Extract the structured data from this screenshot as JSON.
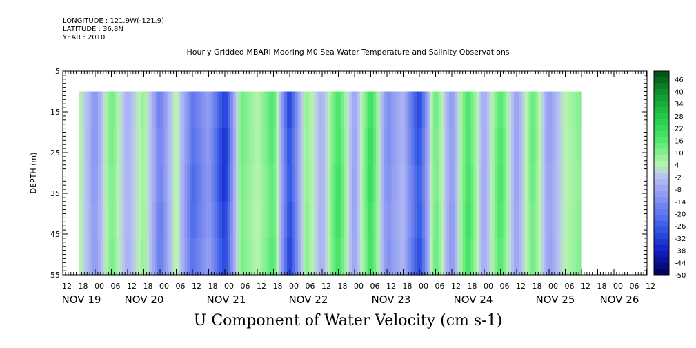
{
  "header": {
    "longitude": "LONGITUDE : 121.9W(-121.9)",
    "latitude": "LATITUDE : 36.8N",
    "year": "YEAR : 2010"
  },
  "chart_data": {
    "type": "heatmap",
    "title": "Hourly Gridded MBARI Mooring M0 Sea Water Temperature and Salinity Observations",
    "xlabel": "U Component of Water Velocity (cm s-1)",
    "ylabel": "DEPTH (m)",
    "ylim": [
      55,
      5
    ],
    "y_ticks": [
      5,
      15,
      25,
      35,
      45,
      55
    ],
    "x_hour_ticks": [
      "12",
      "18",
      "00",
      "06",
      "12",
      "18",
      "00",
      "06",
      "12",
      "18",
      "00",
      "06",
      "12",
      "18",
      "00",
      "06",
      "12",
      "18",
      "00",
      "06",
      "12",
      "18",
      "00",
      "06",
      "12",
      "18",
      "00",
      "06",
      "12",
      "18",
      "00",
      "06",
      "12",
      "18",
      "00",
      "06",
      "12"
    ],
    "x_day_labels": [
      "NOV 19",
      "NOV 20",
      "NOV 21",
      "NOV 22",
      "NOV 23",
      "NOV 24",
      "NOV 25",
      "NOV 26"
    ],
    "colorbar": {
      "labels": [
        46,
        40,
        34,
        28,
        22,
        16,
        10,
        4,
        -2,
        -8,
        -14,
        -20,
        -26,
        -32,
        -38,
        -44,
        -50
      ],
      "range": [
        -50,
        50
      ]
    },
    "data_depth_range_m": [
      10,
      55
    ],
    "data_time_range": [
      "2010-11-18 18:00",
      "2010-11-26 12:00"
    ],
    "time_profile": [
      {
        "t": "2010-11-18 18:00",
        "u": 6
      },
      {
        "t": "2010-11-19 00:00",
        "u": -12
      },
      {
        "t": "2010-11-19 06:00",
        "u": 12
      },
      {
        "t": "2010-11-19 12:00",
        "u": -6
      },
      {
        "t": "2010-11-19 18:00",
        "u": 8
      },
      {
        "t": "2010-11-20 00:00",
        "u": -18
      },
      {
        "t": "2010-11-20 06:00",
        "u": 6
      },
      {
        "t": "2010-11-20 12:00",
        "u": -22
      },
      {
        "t": "2010-11-20 18:00",
        "u": -10
      },
      {
        "t": "2010-11-21 00:00",
        "u": -34
      },
      {
        "t": "2010-11-21 06:00",
        "u": 12
      },
      {
        "t": "2010-11-21 12:00",
        "u": 4
      },
      {
        "t": "2010-11-21 18:00",
        "u": 16
      },
      {
        "t": "2010-11-22 00:00",
        "u": -32
      },
      {
        "t": "2010-11-22 06:00",
        "u": 10
      },
      {
        "t": "2010-11-22 12:00",
        "u": -6
      },
      {
        "t": "2010-11-22 18:00",
        "u": 20
      },
      {
        "t": "2010-11-23 00:00",
        "u": -10
      },
      {
        "t": "2010-11-23 06:00",
        "u": 22
      },
      {
        "t": "2010-11-23 12:00",
        "u": -14
      },
      {
        "t": "2010-11-23 18:00",
        "u": -4
      },
      {
        "t": "2010-11-24 00:00",
        "u": -30
      },
      {
        "t": "2010-11-24 06:00",
        "u": 14
      },
      {
        "t": "2010-11-24 12:00",
        "u": -12
      },
      {
        "t": "2010-11-24 18:00",
        "u": 20
      },
      {
        "t": "2010-11-25 00:00",
        "u": -8
      },
      {
        "t": "2010-11-25 06:00",
        "u": 18
      },
      {
        "t": "2010-11-25 12:00",
        "u": -10
      },
      {
        "t": "2010-11-25 18:00",
        "u": 14
      },
      {
        "t": "2010-11-26 00:00",
        "u": -10
      },
      {
        "t": "2010-11-26 06:00",
        "u": 4
      },
      {
        "t": "2010-11-26 12:00",
        "u": 10
      }
    ]
  }
}
